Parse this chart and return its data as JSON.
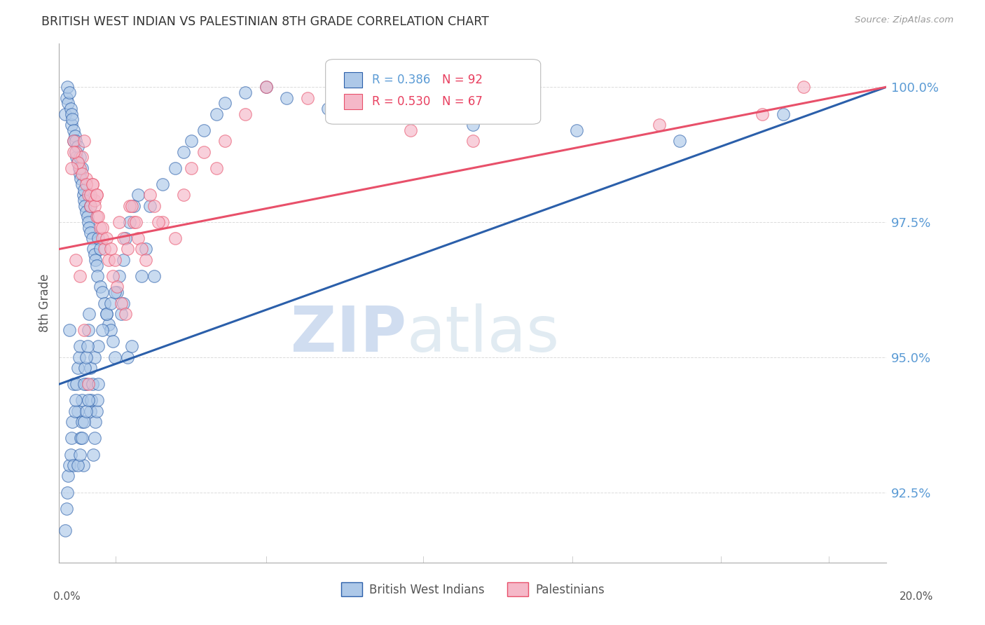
{
  "title": "BRITISH WEST INDIAN VS PALESTINIAN 8TH GRADE CORRELATION CHART",
  "source": "Source: ZipAtlas.com",
  "ylabel": "8th Grade",
  "yticks": [
    92.5,
    95.0,
    97.5,
    100.0
  ],
  "ytick_labels": [
    "92.5%",
    "95.0%",
    "97.5%",
    "100.0%"
  ],
  "xmin": 0.0,
  "xmax": 20.0,
  "ymin": 91.2,
  "ymax": 100.8,
  "series1_color": "#adc8e8",
  "series2_color": "#f5b8c8",
  "trendline1_color": "#2b5faa",
  "trendline2_color": "#e8506a",
  "grid_color": "#cccccc",
  "title_color": "#333333",
  "axis_label_color": "#5b9bd5",
  "watermark_zip_color": "#c8d8ee",
  "watermark_atlas_color": "#dce8f0",
  "bwi_x": [
    0.15,
    0.18,
    0.2,
    0.22,
    0.25,
    0.28,
    0.3,
    0.3,
    0.32,
    0.35,
    0.35,
    0.38,
    0.4,
    0.4,
    0.42,
    0.45,
    0.45,
    0.48,
    0.5,
    0.5,
    0.52,
    0.55,
    0.55,
    0.58,
    0.6,
    0.6,
    0.62,
    0.65,
    0.68,
    0.7,
    0.72,
    0.75,
    0.75,
    0.8,
    0.82,
    0.85,
    0.88,
    0.9,
    0.92,
    0.95,
    1.0,
    1.0,
    1.05,
    1.1,
    1.15,
    1.2,
    1.25,
    1.3,
    1.35,
    1.4,
    1.5,
    1.55,
    1.6,
    1.7,
    1.8,
    1.9,
    2.0,
    2.1,
    2.2,
    2.5,
    2.8,
    3.0,
    3.2,
    3.5,
    3.8,
    4.0,
    4.5,
    5.0,
    5.5,
    6.5,
    8.0,
    10.0,
    12.5,
    15.0,
    17.5,
    0.25,
    0.35,
    0.45,
    0.55,
    0.65,
    0.75,
    0.85,
    0.95,
    1.05,
    1.15,
    1.25,
    1.35,
    1.45,
    1.55,
    1.65,
    1.75,
    2.3
  ],
  "bwi_y": [
    99.5,
    99.8,
    100.0,
    99.7,
    99.9,
    99.6,
    99.3,
    99.5,
    99.4,
    99.2,
    99.0,
    99.1,
    98.8,
    99.0,
    98.7,
    98.9,
    98.6,
    98.5,
    98.7,
    98.4,
    98.3,
    98.2,
    98.5,
    98.0,
    98.1,
    97.9,
    97.8,
    97.7,
    97.6,
    97.5,
    97.4,
    97.3,
    97.8,
    97.2,
    97.0,
    96.9,
    96.8,
    96.7,
    96.5,
    97.2,
    97.0,
    96.3,
    96.2,
    96.0,
    95.8,
    95.6,
    95.5,
    95.3,
    95.0,
    96.2,
    95.8,
    96.0,
    97.2,
    97.5,
    97.8,
    98.0,
    96.5,
    97.0,
    97.8,
    98.2,
    98.5,
    98.8,
    99.0,
    99.2,
    99.5,
    99.7,
    99.9,
    100.0,
    99.8,
    99.6,
    99.5,
    99.3,
    99.2,
    99.0,
    99.5,
    95.5,
    94.5,
    94.0,
    94.2,
    94.5,
    94.8,
    95.0,
    95.2,
    95.5,
    95.8,
    96.0,
    96.2,
    96.5,
    96.8,
    95.0,
    95.2,
    96.5
  ],
  "bwi_y_low": [
    91.8,
    92.2,
    92.5,
    92.8,
    93.0,
    93.2,
    93.5,
    93.8,
    93.0,
    94.0,
    94.2,
    94.5,
    94.8,
    95.0,
    95.2,
    93.5,
    93.8,
    93.0,
    94.5,
    94.8,
    95.0,
    95.2,
    95.5,
    95.8,
    94.0,
    94.2,
    94.5,
    93.2,
    93.5,
    93.8,
    94.0,
    94.2,
    94.5,
    93.0,
    93.2,
    93.5,
    93.8,
    94.0,
    94.2
  ],
  "bwi_x_low": [
    0.15,
    0.18,
    0.2,
    0.22,
    0.25,
    0.28,
    0.3,
    0.32,
    0.35,
    0.38,
    0.4,
    0.42,
    0.45,
    0.48,
    0.5,
    0.52,
    0.55,
    0.58,
    0.6,
    0.62,
    0.65,
    0.68,
    0.7,
    0.72,
    0.75,
    0.78,
    0.8,
    0.82,
    0.85,
    0.88,
    0.9,
    0.92,
    0.95,
    0.45,
    0.5,
    0.55,
    0.6,
    0.65,
    0.7
  ],
  "pal_x": [
    0.35,
    0.4,
    0.5,
    0.55,
    0.6,
    0.65,
    0.7,
    0.75,
    0.8,
    0.85,
    0.9,
    1.0,
    1.05,
    1.1,
    1.2,
    1.3,
    1.4,
    1.5,
    1.6,
    1.7,
    1.8,
    1.9,
    2.0,
    2.1,
    2.2,
    2.3,
    2.5,
    2.8,
    3.0,
    3.2,
    3.5,
    4.0,
    4.5,
    5.0,
    6.0,
    7.0,
    8.5,
    10.0,
    14.5,
    17.0,
    18.0,
    0.45,
    0.55,
    0.65,
    0.75,
    0.85,
    0.95,
    1.05,
    1.15,
    1.25,
    1.35,
    1.45,
    1.55,
    1.65,
    1.75,
    1.85,
    2.4,
    3.8,
    0.9,
    0.4,
    0.5,
    0.6,
    0.7,
    0.3,
    0.8,
    0.9,
    0.35
  ],
  "pal_y": [
    99.0,
    98.8,
    98.5,
    98.7,
    99.0,
    98.3,
    98.0,
    97.8,
    98.2,
    97.9,
    97.6,
    97.4,
    97.2,
    97.0,
    96.8,
    96.5,
    96.3,
    96.0,
    95.8,
    97.8,
    97.5,
    97.2,
    97.0,
    96.8,
    98.0,
    97.8,
    97.5,
    97.2,
    98.0,
    98.5,
    98.8,
    99.0,
    99.5,
    100.0,
    99.8,
    99.5,
    99.2,
    99.0,
    99.3,
    99.5,
    100.0,
    98.6,
    98.4,
    98.2,
    98.0,
    97.8,
    97.6,
    97.4,
    97.2,
    97.0,
    96.8,
    97.5,
    97.2,
    97.0,
    97.8,
    97.5,
    97.5,
    98.5,
    98.0,
    96.8,
    96.5,
    95.5,
    94.5,
    98.5,
    98.2,
    98.0,
    98.8
  ],
  "bwi_trend_x0": 0.0,
  "bwi_trend_x1": 20.0,
  "bwi_trend_y0": 94.5,
  "bwi_trend_y1": 100.0,
  "pal_trend_x0": 0.0,
  "pal_trend_x1": 20.0,
  "pal_trend_y0": 97.0,
  "pal_trend_y1": 100.0
}
